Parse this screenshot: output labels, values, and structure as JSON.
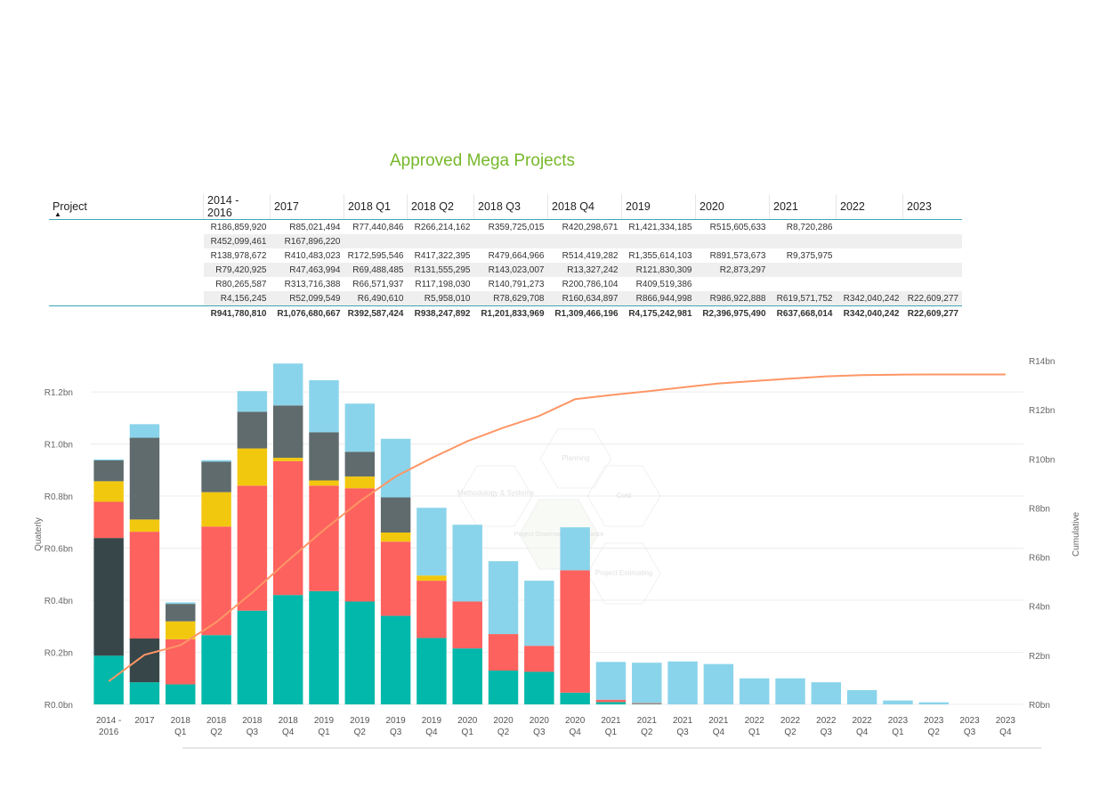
{
  "title": "Approved Mega Projects",
  "table": {
    "project_header": "Project",
    "sort_indicator": "▲",
    "columns": [
      "2014 - 2016",
      "2017",
      "2018 Q1",
      "2018 Q2",
      "2018 Q3",
      "2018 Q4",
      "2019",
      "2020",
      "2021",
      "2022",
      "2023"
    ],
    "rows": [
      [
        "R186,859,920",
        "R85,021,494",
        "R77,440,846",
        "R266,214,162",
        "R359,725,015",
        "R420,298,671",
        "R1,421,334,185",
        "R515,605,633",
        "R8,720,286",
        "",
        ""
      ],
      [
        "R452,099,461",
        "R167,896,220",
        "",
        "",
        "",
        "",
        "",
        "",
        "",
        "",
        ""
      ],
      [
        "R138,978,672",
        "R410,483,023",
        "R172,595,546",
        "R417,322,395",
        "R479,664,966",
        "R514,419,282",
        "R1,355,614,103",
        "R891,573,673",
        "R9,375,975",
        "",
        ""
      ],
      [
        "R79,420,925",
        "R47,463,994",
        "R69,488,485",
        "R131,555,295",
        "R143,023,007",
        "R13,327,242",
        "R121,830,309",
        "R2,873,297",
        "",
        "",
        ""
      ],
      [
        "R80,265,587",
        "R313,716,388",
        "R66,571,937",
        "R117,198,030",
        "R140,791,273",
        "R200,786,104",
        "R409,519,386",
        "",
        "",
        "",
        ""
      ],
      [
        "R4,156,245",
        "R52,099,549",
        "R6,490,610",
        "R5,958,010",
        "R78,629,708",
        "R160,634,897",
        "R866,944,998",
        "R986,922,888",
        "R619,571,752",
        "R342,040,242",
        "R22,609,277"
      ]
    ],
    "totals": [
      "R941,780,810",
      "R1,076,680,667",
      "R392,587,424",
      "R938,247,892",
      "R1,201,833,969",
      "R1,309,466,196",
      "R4,175,242,981",
      "R2,396,975,490",
      "R637,668,014",
      "R342,040,242",
      "R22,609,277"
    ]
  },
  "watermark": {
    "labels": [
      "Planning",
      "Methodology & Systems",
      "Cost",
      "Project Governance Compliance",
      "Project Estimating"
    ]
  },
  "chart_data": {
    "type": "bar",
    "stacked": true,
    "combo_line": true,
    "categories": [
      "2014 - 2016",
      "2017",
      "2018 Q1",
      "2018 Q2",
      "2018 Q3",
      "2018 Q4",
      "2019 Q1",
      "2019 Q2",
      "2019 Q3",
      "2019 Q4",
      "2020 Q1",
      "2020 Q2",
      "2020 Q3",
      "2020 Q4",
      "2021 Q1",
      "2021 Q2",
      "2021 Q3",
      "2021 Q4",
      "2022 Q1",
      "2022 Q2",
      "2022 Q3",
      "2022 Q4",
      "2023 Q1",
      "2023 Q2",
      "2023 Q3",
      "2023 Q4"
    ],
    "x_tick_labels": [
      [
        "2014 -",
        "2016"
      ],
      [
        "2017",
        ""
      ],
      [
        "2018",
        "Q1"
      ],
      [
        "2018",
        "Q2"
      ],
      [
        "2018",
        "Q3"
      ],
      [
        "2018",
        "Q4"
      ],
      [
        "2019",
        "Q1"
      ],
      [
        "2019",
        "Q2"
      ],
      [
        "2019",
        "Q3"
      ],
      [
        "2019",
        "Q4"
      ],
      [
        "2020",
        "Q1"
      ],
      [
        "2020",
        "Q2"
      ],
      [
        "2020",
        "Q3"
      ],
      [
        "2020",
        "Q4"
      ],
      [
        "2021",
        "Q1"
      ],
      [
        "2021",
        "Q2"
      ],
      [
        "2021",
        "Q3"
      ],
      [
        "2021",
        "Q4"
      ],
      [
        "2022",
        "Q1"
      ],
      [
        "2022",
        "Q2"
      ],
      [
        "2022",
        "Q3"
      ],
      [
        "2022",
        "Q4"
      ],
      [
        "2023",
        "Q1"
      ],
      [
        "2023",
        "Q2"
      ],
      [
        "2023",
        "Q3"
      ],
      [
        "2023",
        "Q4"
      ]
    ],
    "series": [
      {
        "color": "#01b8aa",
        "values": [
          0.187,
          0.085,
          0.077,
          0.266,
          0.36,
          0.42,
          0.435,
          0.395,
          0.34,
          0.255,
          0.215,
          0.13,
          0.125,
          0.045,
          0.009,
          0.002,
          0,
          0,
          0,
          0,
          0,
          0,
          0,
          0,
          0,
          0
        ]
      },
      {
        "color": "#374649",
        "values": [
          0.452,
          0.168,
          0,
          0,
          0,
          0,
          0,
          0,
          0,
          0,
          0,
          0,
          0,
          0,
          0,
          0,
          0,
          0,
          0,
          0,
          0,
          0,
          0,
          0,
          0,
          0
        ]
      },
      {
        "color": "#fd625e",
        "values": [
          0.139,
          0.41,
          0.173,
          0.417,
          0.48,
          0.514,
          0.405,
          0.435,
          0.285,
          0.22,
          0.18,
          0.14,
          0.1,
          0.47,
          0.009,
          0.003,
          0,
          0,
          0,
          0,
          0,
          0,
          0,
          0,
          0,
          0
        ]
      },
      {
        "color": "#f2c80f",
        "values": [
          0.079,
          0.047,
          0.069,
          0.132,
          0.143,
          0.013,
          0.02,
          0.045,
          0.035,
          0.02,
          0,
          0,
          0,
          0,
          0,
          0,
          0,
          0,
          0,
          0,
          0,
          0,
          0,
          0,
          0,
          0
        ]
      },
      {
        "color": "#5f6b6d",
        "values": [
          0.08,
          0.314,
          0.067,
          0.117,
          0.141,
          0.201,
          0.185,
          0.095,
          0.135,
          0,
          0,
          0,
          0,
          0,
          0,
          0,
          0,
          0,
          0,
          0,
          0,
          0,
          0,
          0,
          0,
          0
        ]
      },
      {
        "color": "#8ad4eb",
        "values": [
          0.004,
          0.052,
          0.006,
          0.006,
          0.079,
          0.161,
          0.2,
          0.185,
          0.225,
          0.26,
          0.295,
          0.28,
          0.25,
          0.165,
          0.145,
          0.155,
          0.165,
          0.155,
          0.1,
          0.1,
          0.085,
          0.055,
          0.015,
          0.008,
          0,
          0
        ]
      }
    ],
    "line": {
      "name": "Cumulative",
      "color": "#fe9666",
      "values": [
        0.94,
        2.02,
        2.41,
        3.35,
        4.55,
        5.86,
        7.11,
        8.27,
        9.28,
        10.03,
        10.72,
        11.27,
        11.75,
        12.43,
        12.6,
        12.75,
        12.91,
        13.07,
        13.17,
        13.27,
        13.36,
        13.41,
        13.43,
        13.44,
        13.44,
        13.44
      ]
    },
    "y_left": {
      "label": "Quaterly",
      "ticks": [
        "R0.0bn",
        "R0.2bn",
        "R0.4bn",
        "R0.6bn",
        "R0.8bn",
        "R1.0bn",
        "R1.2bn"
      ],
      "tick_values": [
        0,
        0.2,
        0.4,
        0.6,
        0.8,
        1.0,
        1.2
      ],
      "max": 1.32
    },
    "y_right": {
      "label": "Cumulative",
      "ticks": [
        "R0bn",
        "R2bn",
        "R4bn",
        "R6bn",
        "R8bn",
        "R10bn",
        "R12bn",
        "R14bn"
      ],
      "tick_values": [
        0,
        2,
        4,
        6,
        8,
        10,
        12,
        14
      ],
      "max": 14.0
    },
    "grid": true
  }
}
